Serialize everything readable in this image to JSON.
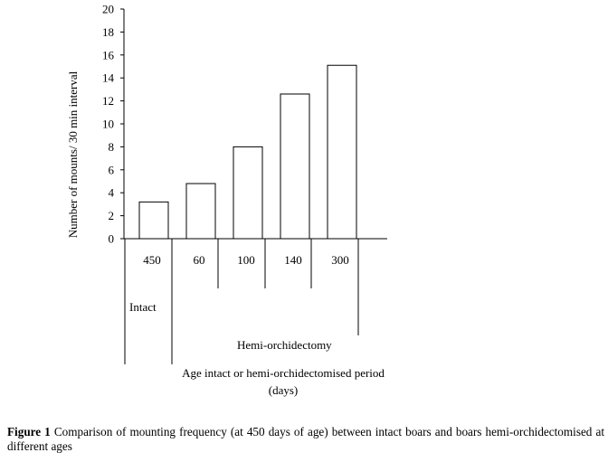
{
  "chart_data": {
    "type": "bar",
    "categories": [
      "450",
      "60",
      "100",
      "140",
      "300"
    ],
    "values": [
      3.2,
      4.8,
      8.0,
      12.6,
      15.1
    ],
    "ylabel": "Number of mounts/ 30 min interval",
    "xlabel_line1": "Age intact or hemi-orchidectomised period",
    "xlabel_line2": "(days)",
    "ylim": [
      0,
      20
    ],
    "yticks": [
      0,
      2,
      4,
      6,
      8,
      10,
      12,
      14,
      16,
      18,
      20
    ],
    "groups": [
      "Intact",
      "Hemi-orchidectomy"
    ],
    "grid": false,
    "bar_fill": "#ffffff",
    "bar_stroke": "#000000"
  },
  "caption": {
    "label": "Figure 1",
    "text": "Comparison of mounting frequency (at 450 days of age) between intact boars and boars hemi-orchidectomised at different ages"
  }
}
